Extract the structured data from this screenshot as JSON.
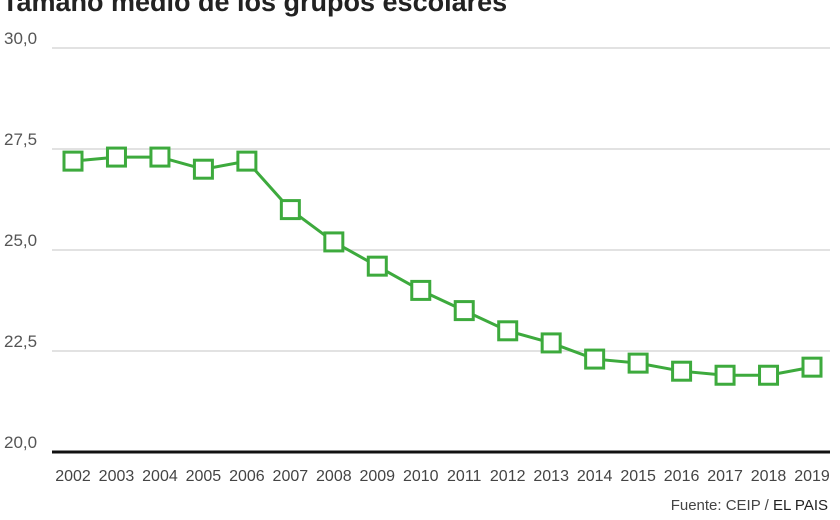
{
  "chart_data": {
    "type": "line",
    "title": "Tamaño medio de los grupos escolares",
    "source": "Fuente: CEIP / ",
    "source_brand": "EL PAIS",
    "x": [
      "2002",
      "2003",
      "2004",
      "2005",
      "2006",
      "2007",
      "2008",
      "2009",
      "2010",
      "2011",
      "2012",
      "2013",
      "2014",
      "2015",
      "2016",
      "2017",
      "2018",
      "2019"
    ],
    "values": [
      27.2,
      27.3,
      27.3,
      27.0,
      27.2,
      26.0,
      25.2,
      24.6,
      24.0,
      23.5,
      23.0,
      22.7,
      22.3,
      22.2,
      22.0,
      21.9,
      21.9,
      22.1
    ],
    "ylim": [
      20,
      30
    ],
    "yticks": [
      20,
      22.5,
      25,
      27.5,
      30
    ],
    "ytick_labels": [
      "20,0",
      "22,5",
      "25,0",
      "27,5",
      "30,0"
    ],
    "grid": true,
    "marker": "square",
    "line_color": "#3daa3d",
    "marker_fill": "#ffffff"
  }
}
